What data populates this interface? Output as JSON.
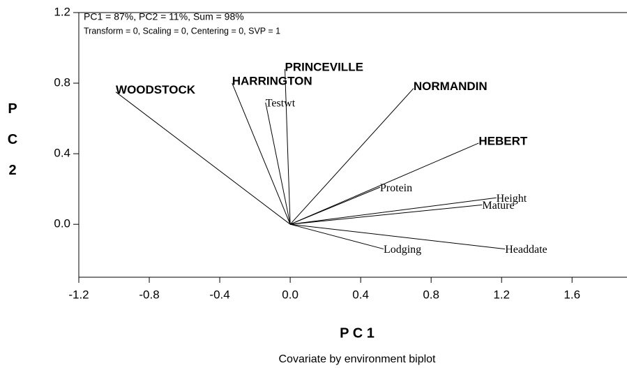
{
  "chart_data": {
    "type": "biplot",
    "annotations": [
      "PC1 = 87%, PC2 = 11%, Sum = 98%",
      "Transform = 0, Scaling = 0, Centering = 0, SVP = 1"
    ],
    "xlabel": "P C 1",
    "ylabel": "P C 2",
    "caption": "Covariate by environment biplot",
    "xlim": [
      -1.2,
      1.9
    ],
    "ylim": [
      -0.3,
      1.2
    ],
    "xticks": [
      -1.2,
      -0.8,
      -0.4,
      {
        "value": 0,
        "label": "0.0"
      },
      0.4,
      0.8,
      1.2,
      1.6
    ],
    "yticks": [
      {
        "value": 0,
        "label": "0.0"
      },
      0.4,
      0.8,
      1.2
    ],
    "series": [
      {
        "name": "environments",
        "color": "#000000",
        "style": "bold",
        "labels": [
          "WOODSTOCK",
          "HARRINGTON",
          "PRINCEVILLE",
          "NORMANDIN",
          "HEBERT"
        ],
        "x": [
          -0.99,
          -0.33,
          -0.03,
          0.7,
          1.07
        ],
        "values": [
          0.75,
          0.8,
          0.88,
          0.77,
          0.46
        ]
      },
      {
        "name": "covariates",
        "color": "#000000",
        "style": "serif",
        "labels": [
          "Testwt",
          "Protein",
          "Height",
          "Mature",
          "Headdate",
          "Lodging"
        ],
        "x": [
          -0.14,
          0.51,
          1.17,
          1.09,
          1.22,
          0.53
        ],
        "values": [
          0.69,
          0.21,
          0.15,
          0.11,
          -0.14,
          -0.14
        ]
      }
    ]
  }
}
